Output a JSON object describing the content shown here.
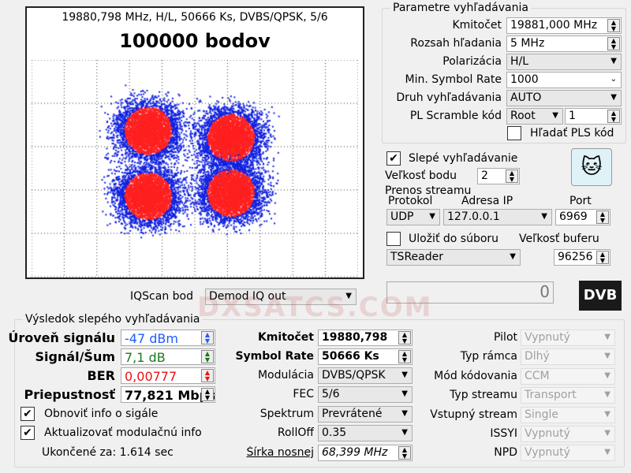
{
  "plot": {
    "header": "19880,798 MHz, H/L, 50666 Ks, DVBS/QPSK, 5/6",
    "points_label": "100000 bodov",
    "colors": {
      "dense": "#ff2020",
      "sparse": "#1020e0"
    }
  },
  "iqscan": {
    "label": "IQScan bod",
    "value": "Demod IQ out"
  },
  "params": {
    "title": "Parametre vyhľadávania",
    "kmitocet_label": "Kmitočet",
    "kmitocet": "19881,000 MHz",
    "rozsah_label": "Rozsah hľadania",
    "rozsah": "5 MHz",
    "polar_label": "Polarizácia",
    "polar": "H/L",
    "minsr_label": "Min. Symbol Rate",
    "minsr": "1000",
    "druh_label": "Druh vyhľadávania",
    "druh": "AUTO",
    "pls_label": "PL Scramble kód",
    "pls_mode": "Root",
    "pls_value": "1",
    "hladat_pls": "Hľadať PLS kód"
  },
  "blind": {
    "label": "Slepé vyhľadávanie",
    "velkost_label": "Veľkosť bodu",
    "velkost": "2"
  },
  "stream": {
    "title": "Prenos streamu",
    "protokol_label": "Protokol",
    "adresa_label": "Adresa IP",
    "port_label": "Port",
    "protokol": "UDP",
    "adresa": "127.0.0.1",
    "port": "6969",
    "ulozit": "Uložiť do súboru",
    "buffer_label": "Veľkosť buferu",
    "reader": "TSReader",
    "buffer": "96256",
    "counter": "0",
    "logo": "DVB"
  },
  "result": {
    "title": "Výsledok slepého vyhľadávania",
    "level_label": "Úroveň signálu",
    "level": "-47 dBm",
    "snr_label": "Signál/Šum",
    "snr": "7,1 dB",
    "ber_label": "BER",
    "ber": "0,00777",
    "thr_label": "Priepustnosť",
    "thr": "77,821 Mbps",
    "obnovit": "Obnoviť info o sigále",
    "aktualizovat": "Aktualizovať modulačnú info",
    "ukoncene": "Ukončené za: 1.614 sec",
    "kmit_label": "Kmitočet",
    "kmit": "19880,798",
    "sr_label": "Symbol Rate",
    "sr": "50666 Ks",
    "mod_label": "Modulácia",
    "mod": "DVBS/QPSK",
    "fec_label": "FEC",
    "fec": "5/6",
    "spektrum_label": "Spektrum",
    "spektrum": "Prevrátené",
    "rolloff_label": "RollOff",
    "rolloff": "0.35",
    "sirka_label": "Šírka nosnej",
    "sirka": "68,399 MHz",
    "pilot_label": "Pilot",
    "pilot": "Vypnutý",
    "ramec_label": "Typ rámca",
    "ramec": "Dlhý",
    "mod_kod_label": "Mód kódovania",
    "mod_kod": "CCM",
    "typ_stream_label": "Typ streamu",
    "typ_stream": "Transport",
    "vstup_label": "Vstupný stream",
    "vstup": "Single",
    "issyi_label": "ISSYI",
    "issyi": "Vypnutý",
    "npd_label": "NPD",
    "npd": "Vypnutý",
    "colors": {
      "level": "#1e5cff",
      "snr": "#1a7a1a",
      "ber": "#ee1111"
    }
  },
  "watermark": "DXSATCS.COM"
}
